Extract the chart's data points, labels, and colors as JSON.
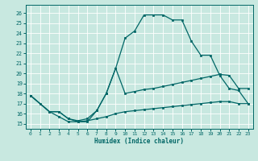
{
  "xlabel": "Humidex (Indice chaleur)",
  "bg_color": "#c8e8e0",
  "grid_color": "#ffffff",
  "line_color": "#006666",
  "xlim": [
    -0.5,
    23.5
  ],
  "ylim": [
    14.5,
    26.8
  ],
  "xticks": [
    0,
    1,
    2,
    3,
    4,
    5,
    6,
    7,
    8,
    9,
    10,
    11,
    12,
    13,
    14,
    15,
    16,
    17,
    18,
    19,
    20,
    21,
    22,
    23
  ],
  "yticks": [
    15,
    16,
    17,
    18,
    19,
    20,
    21,
    22,
    23,
    24,
    25,
    26
  ],
  "line1_x": [
    0,
    1,
    2,
    3,
    4,
    5,
    6,
    7,
    8,
    9,
    10,
    11,
    12,
    13,
    14,
    15,
    16,
    17,
    18,
    19,
    20,
    21,
    22,
    23
  ],
  "line1_y": [
    17.8,
    17.0,
    16.2,
    16.2,
    15.5,
    15.2,
    15.2,
    16.3,
    18.0,
    20.5,
    23.5,
    24.2,
    25.8,
    25.8,
    25.8,
    25.3,
    25.3,
    23.2,
    21.8,
    21.8,
    19.8,
    18.5,
    18.3,
    17.0
  ],
  "line2_x": [
    0,
    2,
    3,
    4,
    5,
    6,
    7,
    8,
    9,
    10,
    11,
    12,
    13,
    14,
    15,
    16,
    17,
    18,
    19,
    20,
    21,
    22,
    23
  ],
  "line2_y": [
    17.8,
    16.2,
    16.2,
    15.5,
    15.3,
    15.5,
    16.3,
    18.0,
    20.5,
    18.0,
    18.2,
    18.4,
    18.5,
    18.7,
    18.9,
    19.1,
    19.3,
    19.5,
    19.7,
    19.9,
    19.8,
    18.5,
    18.5
  ],
  "line3_x": [
    0,
    2,
    3,
    4,
    5,
    6,
    7,
    8,
    9,
    10,
    11,
    12,
    13,
    14,
    15,
    16,
    17,
    18,
    19,
    20,
    21,
    22,
    23
  ],
  "line3_y": [
    17.8,
    16.2,
    15.7,
    15.2,
    15.2,
    15.3,
    15.5,
    15.7,
    16.0,
    16.2,
    16.3,
    16.4,
    16.5,
    16.6,
    16.7,
    16.8,
    16.9,
    17.0,
    17.1,
    17.2,
    17.2,
    17.0,
    17.0
  ]
}
